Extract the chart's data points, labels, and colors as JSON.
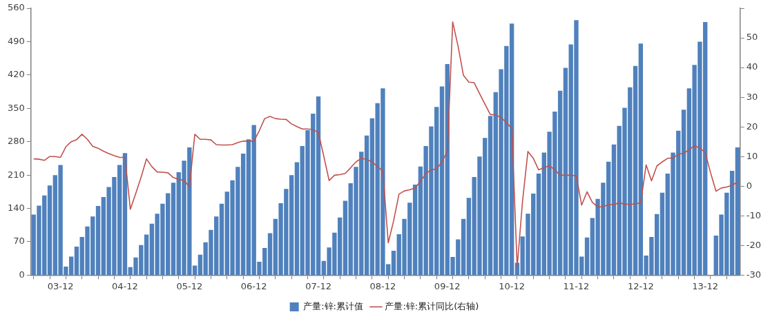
{
  "chart_data": {
    "type": "bar",
    "legend": "bottom",
    "grid": false,
    "marker": "none",
    "line_style": "solid",
    "categories": [
      null,
      null,
      null,
      null,
      null,
      "03-12",
      null,
      null,
      null,
      null,
      null,
      null,
      null,
      null,
      null,
      null,
      null,
      "04-12",
      null,
      null,
      null,
      null,
      null,
      null,
      null,
      null,
      null,
      null,
      null,
      "05-12",
      null,
      null,
      null,
      null,
      null,
      null,
      null,
      null,
      null,
      null,
      null,
      "06-12",
      null,
      null,
      null,
      null,
      null,
      null,
      null,
      null,
      null,
      null,
      null,
      "07-12",
      null,
      null,
      null,
      null,
      null,
      null,
      null,
      null,
      null,
      null,
      null,
      "08-12",
      null,
      null,
      null,
      null,
      null,
      null,
      null,
      null,
      null,
      null,
      null,
      "09-12",
      null,
      null,
      null,
      null,
      null,
      null,
      null,
      null,
      null,
      null,
      null,
      "10-12",
      null,
      null,
      null,
      null,
      null,
      null,
      null,
      null,
      null,
      null,
      null,
      "11-12",
      null,
      null,
      null,
      null,
      null,
      null,
      null,
      null,
      null,
      null,
      null,
      "12-12",
      null,
      null,
      null,
      null,
      null,
      null,
      null,
      null,
      null,
      null,
      null,
      "13-12",
      null,
      null,
      null,
      null,
      null,
      null
    ],
    "ylim": [
      0,
      560
    ],
    "yticks": [
      0,
      70,
      140,
      210,
      280,
      350,
      420,
      490,
      560
    ],
    "y2lim": [
      -30,
      60
    ],
    "y2ticks": [
      -30,
      -20,
      -10,
      0,
      10,
      20,
      30,
      40,
      50,
      {
        "value": 60,
        "label": null
      }
    ],
    "series": [
      {
        "name": "产量:锌:累计值",
        "color": "#4f81bd",
        "values": [
          127,
          146,
          167,
          188,
          210,
          231,
          18,
          39,
          60,
          80,
          102,
          123,
          145,
          164,
          185,
          206,
          231,
          256,
          17,
          37,
          63,
          85,
          108,
          129,
          150,
          172,
          194,
          216,
          240,
          268,
          20,
          43,
          69,
          95,
          123,
          150,
          175,
          199,
          227,
          255,
          285,
          315,
          28,
          57,
          88,
          118,
          151,
          181,
          210,
          237,
          271,
          304,
          339,
          375,
          30,
          58,
          89,
          121,
          156,
          193,
          227,
          259,
          293,
          329,
          361,
          392,
          23,
          51,
          86,
          118,
          152,
          190,
          228,
          271,
          312,
          353,
          396,
          443,
          38,
          75,
          118,
          162,
          206,
          249,
          288,
          334,
          384,
          432,
          481,
          528,
          26,
          81,
          129,
          171,
          213,
          257,
          301,
          343,
          387,
          435,
          484,
          535,
          39,
          79,
          120,
          160,
          194,
          238,
          274,
          313,
          351,
          394,
          439,
          486,
          41,
          80,
          128,
          173,
          213,
          257,
          303,
          347,
          392,
          441,
          490,
          531,
          null,
          83,
          127,
          173,
          219,
          268
        ]
      },
      {
        "name": "产量:锌:累计同比(右轴)",
        "type": "line",
        "axis": "y2",
        "color": "#c0504d",
        "values": [
          9.2,
          9.1,
          8.7,
          10,
          10,
          9.7,
          13.3,
          15,
          15.7,
          17.5,
          15.8,
          13.4,
          12.8,
          11.8,
          11,
          10.3,
          9.7,
          9.7,
          -7.8,
          -2.5,
          3,
          9.2,
          6.6,
          4.8,
          4.7,
          4.5,
          2.9,
          2.3,
          1.9,
          -0.2,
          17.5,
          15.8,
          15.8,
          15.6,
          14,
          13.9,
          13.9,
          14,
          14.7,
          15.2,
          15.2,
          15.2,
          18.7,
          22.8,
          23.5,
          22.8,
          22.6,
          22.5,
          21,
          20.1,
          19.3,
          19.3,
          19.1,
          18.1,
          10.1,
          1.9,
          3.7,
          3.9,
          4.3,
          6.2,
          8.2,
          9.4,
          9,
          8.2,
          6.6,
          5.1,
          -19.1,
          -11.7,
          -2.7,
          -1.6,
          -1.2,
          -0.6,
          1.6,
          4.3,
          5.5,
          5.8,
          8.2,
          11.7,
          55.4,
          47.2,
          37.4,
          35.1,
          34.9,
          31.2,
          27.7,
          24.2,
          24,
          23.2,
          21.4,
          19.5,
          -27.3,
          -5,
          11.7,
          9.4,
          5.5,
          6.2,
          6.9,
          5.5,
          3.7,
          3.7,
          3.7,
          3.5,
          -6.4,
          -1.9,
          -5.5,
          -7,
          -6.9,
          -6.2,
          -6.2,
          -5.6,
          -6.1,
          -6.1,
          -6,
          -5.6,
          7.2,
          1.8,
          6.8,
          8.2,
          9.4,
          9.5,
          10.8,
          11.1,
          12.3,
          13.6,
          12.9,
          11.3,
          4.5,
          -1.7,
          -0.6,
          -0.3,
          0.3,
          1.4
        ]
      }
    ]
  }
}
